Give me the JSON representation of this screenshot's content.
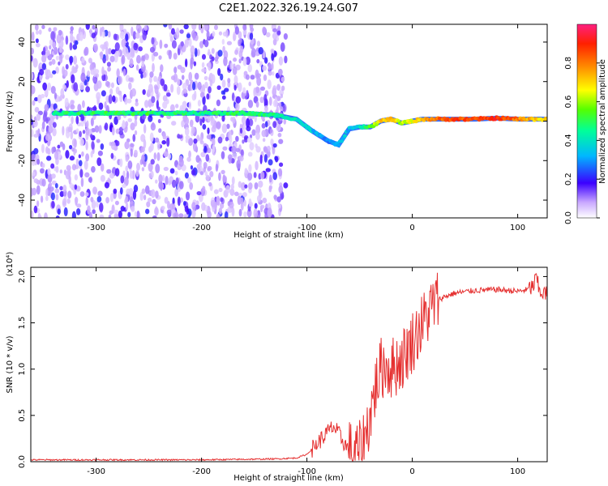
{
  "title": "C2E1.2022.326.19.24.G07",
  "chart_data": [
    {
      "type": "heatmap",
      "xlabel": "Height of straight line (km)",
      "ylabel": "Frequency (Hz)",
      "xlim": [
        -362,
        128
      ],
      "ylim": [
        -49,
        49
      ],
      "xticks": [
        -300,
        -200,
        -100,
        0,
        100
      ],
      "xtick_labels": [
        "-300",
        "-200",
        "-100",
        "0",
        "100"
      ],
      "yticks": [
        -40,
        -20,
        0,
        20,
        40
      ],
      "ytick_labels": [
        "-40",
        "-20",
        "0",
        "20",
        "40"
      ],
      "colorbar": {
        "label": "Normalized spectral amplitude",
        "range": [
          0,
          1
        ],
        "ticks": [
          0.0,
          0.2,
          0.4,
          0.6,
          0.8
        ],
        "tick_labels": [
          "0.0",
          "0.2",
          "0.4",
          "0.6",
          "0.8"
        ]
      },
      "trace": {
        "x": [
          -340,
          -300,
          -250,
          -200,
          -160,
          -130,
          -110,
          -95,
          -80,
          -70,
          -60,
          -50,
          -40,
          -30,
          -20,
          -10,
          0,
          10,
          20,
          40,
          60,
          80,
          100,
          120,
          128
        ],
        "y": [
          4,
          4,
          4,
          4,
          4,
          3,
          1,
          -5,
          -10,
          -12,
          -4,
          -3,
          -3,
          0,
          1,
          -1,
          0,
          1,
          1,
          1,
          1,
          1.5,
          1,
          1,
          1
        ],
        "amplitude": [
          0.45,
          0.5,
          0.5,
          0.45,
          0.5,
          0.45,
          0.4,
          0.35,
          0.3,
          0.3,
          0.35,
          0.4,
          0.55,
          0.7,
          0.75,
          0.6,
          0.65,
          0.75,
          0.8,
          0.85,
          0.85,
          0.9,
          0.8,
          0.7,
          0.7
        ]
      },
      "noise_region_x": [
        -362,
        -120
      ]
    },
    {
      "type": "line",
      "xlabel": "Height of straight line (km)",
      "ylabel": "SNR (10 * v/v)",
      "multiplier": "(x10⁴)",
      "xlim": [
        -362,
        128
      ],
      "ylim": [
        0,
        2.1
      ],
      "xticks": [
        -300,
        -200,
        -100,
        0,
        100
      ],
      "xtick_labels": [
        "-300",
        "-200",
        "-100",
        "0",
        "100"
      ],
      "yticks": [
        0.0,
        0.5,
        1.0,
        1.5,
        2.0
      ],
      "ytick_labels": [
        "0.0",
        "0.5",
        "1.0",
        "1.5",
        "2.0"
      ],
      "color": "#e53030",
      "x": [
        -362,
        -300,
        -200,
        -130,
        -110,
        -100,
        -90,
        -80,
        -75,
        -70,
        -60,
        -55,
        -50,
        -45,
        -40,
        -35,
        -30,
        -25,
        -20,
        -15,
        -10,
        -5,
        0,
        5,
        10,
        15,
        20,
        25,
        30,
        40,
        60,
        80,
        100,
        110,
        115,
        118,
        120,
        125,
        128
      ],
      "y": [
        0.02,
        0.02,
        0.02,
        0.03,
        0.04,
        0.08,
        0.2,
        0.32,
        0.38,
        0.3,
        0.12,
        0.08,
        0.1,
        0.25,
        0.5,
        0.8,
        1.0,
        1.05,
        1.0,
        1.05,
        1.1,
        1.2,
        1.3,
        1.4,
        1.5,
        1.6,
        1.7,
        1.75,
        1.78,
        1.82,
        1.85,
        1.86,
        1.84,
        1.86,
        1.9,
        2.0,
        1.85,
        1.82,
        1.8
      ]
    }
  ]
}
